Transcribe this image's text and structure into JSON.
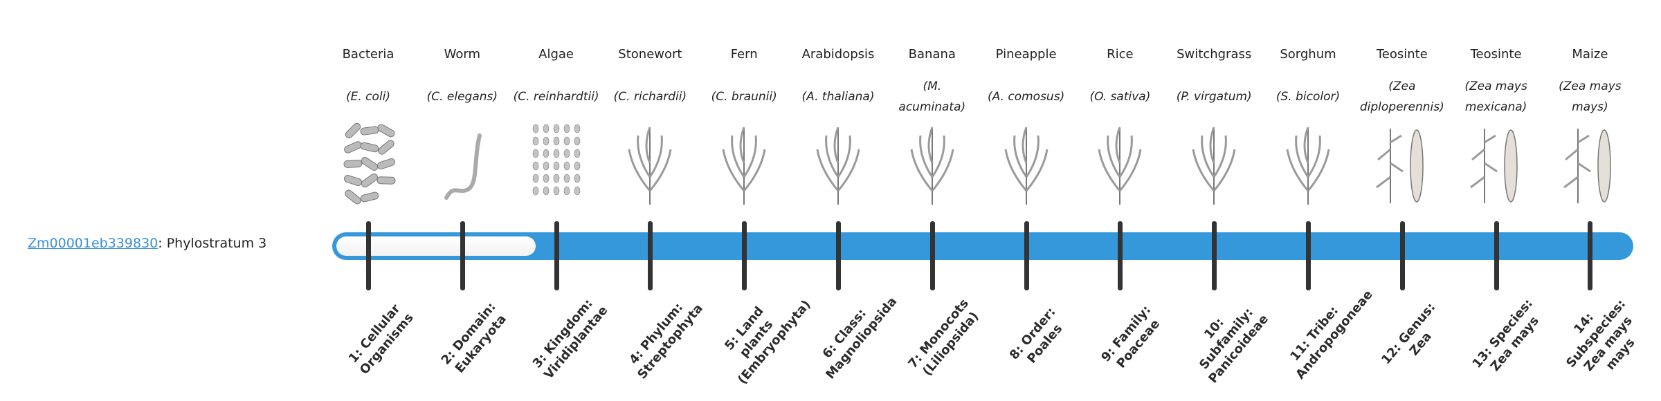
{
  "gene": {
    "id": "Zm00001eb339830",
    "suffix": ": Phylostratum 3"
  },
  "phylostratum": 3,
  "colors": {
    "bar": "#3598db",
    "link": "#3a8fd6",
    "tick": "#333333"
  },
  "strata": [
    {
      "name": "Bacteria",
      "species": "(E. coli)",
      "icon": "bacteria-icon",
      "label": "1: Cellular Organisms"
    },
    {
      "name": "Worm",
      "species": "(C. elegans)",
      "icon": "worm-icon",
      "label": "2: Domain: Eukaryota"
    },
    {
      "name": "Algae",
      "species": "(C. reinhardtii)",
      "icon": "algae-icon",
      "label": "3: Kingdom: Viridiplantae"
    },
    {
      "name": "Stonewort",
      "species": "(C. richardii)",
      "icon": "stonewort-icon",
      "label": "4: Phylum: Streptophyta"
    },
    {
      "name": "Fern",
      "species": "(C. braunii)",
      "icon": "fern-icon",
      "label": "5: Land plants (Embryophyta)"
    },
    {
      "name": "Arabidopsis",
      "species": "(A. thaliana)",
      "icon": "arabidopsis-icon",
      "label": "6: Class: Magnoliopsida"
    },
    {
      "name": "Banana",
      "species": "(M. acuminata)",
      "icon": "banana-icon",
      "label": "7: Monocots (Liliopsida)"
    },
    {
      "name": "Pineapple",
      "species": "(A. comosus)",
      "icon": "pineapple-icon",
      "label": "8: Order: Poales"
    },
    {
      "name": "Rice",
      "species": "(O. sativa)",
      "icon": "rice-icon",
      "label": "9: Family: Poaceae"
    },
    {
      "name": "Switchgrass",
      "species": "(P. virgatum)",
      "icon": "switchgrass-icon",
      "label": "10: Subfamily: Panicoideae"
    },
    {
      "name": "Sorghum",
      "species": "(S. bicolor)",
      "icon": "sorghum-icon",
      "label": "11: Tribe: Andropogoneae"
    },
    {
      "name": "Teosinte",
      "species": "(Zea diploperennis)",
      "icon": "teosinte-icon",
      "label": "12: Genus: Zea"
    },
    {
      "name": "Teosinte",
      "species": "(Zea mays mexicana)",
      "icon": "teosinte-icon",
      "label": "13: Species: Zea mays"
    },
    {
      "name": "Maize",
      "species": "(Zea mays mays)",
      "icon": "maize-icon",
      "label": "14: Subspecies: Zea mays mays"
    }
  ]
}
